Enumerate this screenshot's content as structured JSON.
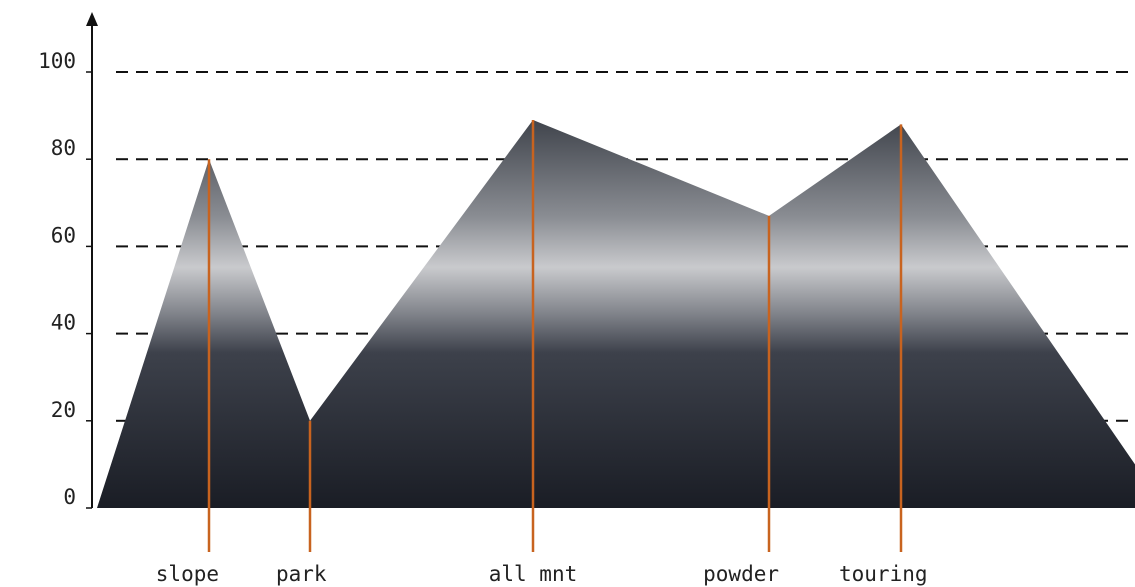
{
  "chart_data": {
    "type": "area",
    "categories": [
      null,
      "slope",
      "park",
      "all mnt",
      "powder",
      "touring",
      null
    ],
    "values": [
      0,
      80,
      20,
      89,
      67,
      88,
      10
    ],
    "ylim": [
      0,
      100
    ],
    "yticks": [
      0,
      20,
      40,
      60,
      80,
      100
    ],
    "grid": true,
    "color": "#c8631f"
  }
}
